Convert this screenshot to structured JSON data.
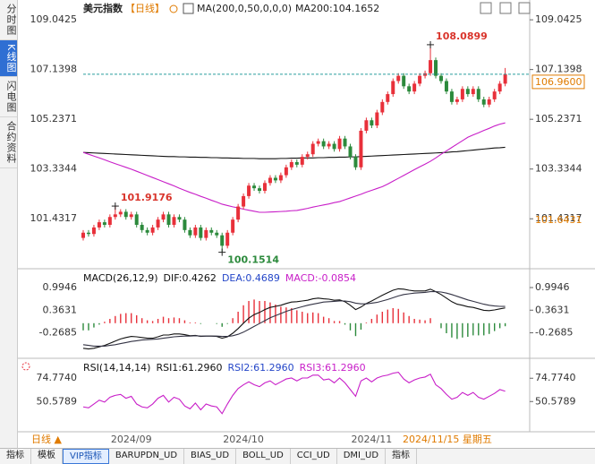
{
  "ui": {
    "side_tabs": [
      "分时图",
      "K线图",
      "闪电图",
      "合约资料"
    ],
    "instrument": "美元指数",
    "period": "【日线】",
    "indicator": "MA(200,0,50,0,0,0)",
    "ma_value": "MA200:104.1652",
    "period_button": "日线 ▲",
    "cursor_date": "2024/11/15 星期五",
    "bottom_tabs": [
      "指标",
      "模板",
      "VIP指标",
      "BARUPDN_UD",
      "BIAS_UD",
      "BOLL_UD",
      "CCI_UD",
      "DMI_UD",
      "指标"
    ]
  },
  "chart_data": [
    {
      "type": "candlestick",
      "up_color": "#e8303a",
      "down_color": "#2c8a3c",
      "categories": [
        null,
        null,
        null,
        null,
        null,
        null,
        null,
        null,
        null,
        "2024/09",
        null,
        null,
        null,
        null,
        null,
        null,
        null,
        null,
        null,
        null,
        null,
        null,
        null,
        null,
        null,
        null,
        null,
        null,
        null,
        null,
        "2024/10",
        null,
        null,
        null,
        null,
        null,
        null,
        null,
        null,
        null,
        null,
        null,
        null,
        null,
        null,
        null,
        null,
        null,
        null,
        null,
        null,
        null,
        null,
        null,
        "2024/11",
        null,
        null,
        null,
        null,
        null,
        null,
        null,
        null,
        null,
        null,
        null,
        null,
        null,
        null,
        null,
        null,
        null,
        null,
        null,
        null,
        null,
        null,
        null,
        null,
        null
      ],
      "open": [
        100.7,
        100.9,
        100.85,
        101.1,
        101.3,
        101.2,
        101.5,
        101.6,
        101.7,
        101.5,
        101.6,
        101.2,
        101.0,
        100.9,
        101.1,
        101.4,
        101.6,
        101.2,
        101.5,
        101.4,
        101.0,
        100.8,
        101.1,
        100.7,
        101.0,
        100.9,
        100.8,
        100.4,
        100.9,
        101.4,
        101.9,
        102.3,
        102.7,
        102.6,
        102.5,
        102.8,
        103.0,
        102.9,
        103.1,
        103.4,
        103.6,
        103.5,
        103.8,
        103.9,
        104.3,
        104.4,
        104.2,
        104.3,
        104.1,
        104.5,
        104.2,
        103.8,
        103.4,
        104.8,
        105.2,
        105.0,
        105.5,
        105.9,
        106.2,
        106.7,
        106.9,
        106.5,
        106.3,
        106.6,
        106.9,
        107.0,
        107.5,
        106.9,
        106.7,
        106.3,
        105.9,
        106.0,
        106.4,
        106.2,
        106.4,
        106.0,
        105.8,
        106.0,
        106.3,
        106.6
      ],
      "high": [
        101.0,
        101.0,
        101.2,
        101.4,
        101.4,
        101.6,
        101.9176,
        101.8,
        101.8,
        101.7,
        101.7,
        101.3,
        101.1,
        101.2,
        101.5,
        101.7,
        101.7,
        101.6,
        101.6,
        101.5,
        101.1,
        101.2,
        101.2,
        101.1,
        101.1,
        101.0,
        100.9,
        101.0,
        101.5,
        102.0,
        102.4,
        102.8,
        102.8,
        102.7,
        102.9,
        103.1,
        103.1,
        103.2,
        103.5,
        103.7,
        103.7,
        103.9,
        104.0,
        104.4,
        104.5,
        104.5,
        104.4,
        104.4,
        104.6,
        104.6,
        104.3,
        103.9,
        104.9,
        105.3,
        105.3,
        105.6,
        106.0,
        106.3,
        106.8,
        107.0,
        107.0,
        106.6,
        106.7,
        107.0,
        107.1,
        108.0899,
        107.6,
        107.0,
        106.8,
        106.4,
        106.1,
        106.5,
        106.5,
        106.5,
        106.5,
        106.1,
        106.1,
        106.4,
        106.7,
        107.2
      ],
      "low": [
        100.6,
        100.75,
        100.75,
        101.0,
        101.1,
        101.1,
        101.4,
        101.5,
        101.4,
        101.4,
        101.1,
        100.9,
        100.8,
        100.8,
        101.0,
        101.3,
        101.1,
        101.1,
        101.3,
        100.9,
        100.7,
        100.7,
        100.6,
        100.6,
        100.8,
        100.7,
        100.1514,
        100.3,
        100.8,
        101.3,
        101.8,
        102.2,
        102.5,
        102.4,
        102.4,
        102.7,
        102.8,
        102.8,
        103.0,
        103.3,
        103.4,
        103.4,
        103.7,
        103.8,
        104.2,
        104.1,
        104.1,
        104.0,
        104.0,
        104.1,
        103.7,
        103.3,
        103.3,
        104.7,
        104.9,
        104.9,
        105.4,
        105.8,
        106.1,
        106.6,
        106.4,
        106.2,
        106.2,
        106.5,
        106.8,
        106.9,
        106.8,
        106.6,
        106.2,
        105.8,
        105.8,
        105.9,
        106.1,
        106.1,
        105.9,
        105.7,
        105.7,
        105.9,
        106.2,
        106.5
      ],
      "close": [
        100.9,
        100.85,
        101.1,
        101.3,
        101.2,
        101.5,
        101.6,
        101.7,
        101.5,
        101.6,
        101.2,
        101.0,
        100.9,
        101.1,
        101.4,
        101.6,
        101.2,
        101.5,
        101.4,
        101.0,
        100.8,
        101.1,
        100.7,
        101.0,
        100.9,
        100.8,
        100.4,
        100.9,
        101.4,
        101.9,
        102.3,
        102.7,
        102.6,
        102.5,
        102.8,
        103.0,
        102.9,
        103.1,
        103.4,
        103.6,
        103.5,
        103.8,
        103.9,
        104.3,
        104.4,
        104.2,
        104.3,
        104.1,
        104.5,
        104.2,
        103.8,
        103.4,
        104.8,
        105.2,
        105.0,
        105.5,
        105.9,
        106.2,
        106.7,
        106.9,
        106.5,
        106.3,
        106.6,
        106.9,
        107.0,
        107.5,
        106.9,
        106.7,
        106.3,
        105.9,
        106.0,
        106.4,
        106.2,
        106.4,
        106.0,
        105.8,
        106.0,
        106.3,
        106.6,
        106.96
      ],
      "series": [
        {
          "color": "#111111",
          "values": [
            103.97,
            103.96,
            103.95,
            103.94,
            103.93,
            103.92,
            103.91,
            103.9,
            103.89,
            103.88,
            103.87,
            103.86,
            103.85,
            103.84,
            103.83,
            103.82,
            103.81,
            103.81,
            103.8,
            103.8,
            103.79,
            103.79,
            103.78,
            103.78,
            103.77,
            103.77,
            103.76,
            103.76,
            103.75,
            103.75,
            103.74,
            103.74,
            103.74,
            103.73,
            103.73,
            103.73,
            103.73,
            103.74,
            103.74,
            103.75,
            103.75,
            103.76,
            103.76,
            103.76,
            103.77,
            103.77,
            103.78,
            103.78,
            103.79,
            103.79,
            103.8,
            103.8,
            103.81,
            103.82,
            103.83,
            103.84,
            103.85,
            103.86,
            103.87,
            103.88,
            103.89,
            103.9,
            103.91,
            103.92,
            103.93,
            103.94,
            103.95,
            103.96,
            103.97,
            103.99,
            104.0,
            104.02,
            104.04,
            104.06,
            104.08,
            104.1,
            104.12,
            104.14,
            104.15,
            104.1652
          ]
        },
        {
          "color": "#c81ec8",
          "values": [
            103.97,
            103.9,
            103.83,
            103.76,
            103.69,
            103.61,
            103.54,
            103.47,
            103.4,
            103.33,
            103.25,
            103.17,
            103.09,
            103.01,
            102.93,
            102.85,
            102.77,
            102.69,
            102.6,
            102.52,
            102.44,
            102.37,
            102.29,
            102.22,
            102.14,
            102.07,
            101.99,
            101.94,
            101.89,
            101.85,
            101.8,
            101.76,
            101.72,
            101.68,
            101.68,
            101.69,
            101.7,
            101.71,
            101.72,
            101.74,
            101.75,
            101.79,
            101.83,
            101.88,
            101.92,
            101.96,
            102.0,
            102.05,
            102.09,
            102.16,
            102.23,
            102.3,
            102.37,
            102.45,
            102.52,
            102.59,
            102.66,
            102.76,
            102.87,
            102.98,
            103.09,
            103.2,
            103.31,
            103.42,
            103.52,
            103.63,
            103.76,
            103.9,
            104.03,
            104.16,
            104.29,
            104.42,
            104.55,
            104.64,
            104.72,
            104.81,
            104.89,
            104.98,
            105.05,
            105.1
          ]
        }
      ],
      "last_value_label": "106.9600",
      "last_line_color": "#2a9d9d",
      "reference_level": 101.6431,
      "ylim": [
        99.59,
        109.8
      ],
      "yticks": [
        101.4317,
        103.3344,
        105.2371,
        107.1398,
        109.0425
      ]
    },
    {
      "type": "macd",
      "legend": [
        {
          "text": "MACD(26,12,9)",
          "color": "#111111"
        },
        {
          "text": "DIF:0.4262",
          "color": "#111111"
        },
        {
          "text": "DEA:0.4689",
          "color": "#2446c8"
        },
        {
          "text": "MACD:-0.0854",
          "color": "#c81ec8"
        }
      ],
      "up_color": "#e8303a",
      "down_color": "#2c8a3c",
      "series": [
        {
          "color": "#111111",
          "values": [
            -0.7,
            -0.72,
            -0.7,
            -0.66,
            -0.62,
            -0.56,
            -0.5,
            -0.44,
            -0.4,
            -0.37,
            -0.38,
            -0.4,
            -0.42,
            -0.42,
            -0.38,
            -0.33,
            -0.33,
            -0.3,
            -0.3,
            -0.32,
            -0.35,
            -0.34,
            -0.37,
            -0.36,
            -0.36,
            -0.37,
            -0.42,
            -0.38,
            -0.28,
            -0.15,
            0.0,
            0.14,
            0.24,
            0.3,
            0.38,
            0.44,
            0.47,
            0.5,
            0.55,
            0.59,
            0.6,
            0.62,
            0.64,
            0.68,
            0.7,
            0.68,
            0.67,
            0.64,
            0.65,
            0.6,
            0.5,
            0.38,
            0.45,
            0.55,
            0.62,
            0.7,
            0.78,
            0.85,
            0.92,
            0.96,
            0.95,
            0.92,
            0.9,
            0.9,
            0.9,
            0.95,
            0.88,
            0.8,
            0.7,
            0.6,
            0.53,
            0.5,
            0.46,
            0.44,
            0.4,
            0.36,
            0.35,
            0.37,
            0.4,
            0.4262
          ]
        },
        {
          "color": "#333344",
          "values": [
            -0.6,
            -0.62,
            -0.64,
            -0.64,
            -0.64,
            -0.62,
            -0.6,
            -0.57,
            -0.54,
            -0.51,
            -0.49,
            -0.47,
            -0.46,
            -0.45,
            -0.44,
            -0.42,
            -0.4,
            -0.38,
            -0.37,
            -0.36,
            -0.36,
            -0.35,
            -0.36,
            -0.36,
            -0.36,
            -0.36,
            -0.37,
            -0.37,
            -0.35,
            -0.31,
            -0.25,
            -0.17,
            -0.09,
            -0.01,
            0.07,
            0.15,
            0.21,
            0.27,
            0.33,
            0.38,
            0.42,
            0.46,
            0.5,
            0.53,
            0.56,
            0.59,
            0.6,
            0.61,
            0.62,
            0.62,
            0.6,
            0.56,
            0.54,
            0.54,
            0.56,
            0.58,
            0.62,
            0.66,
            0.71,
            0.76,
            0.8,
            0.82,
            0.84,
            0.85,
            0.86,
            0.88,
            0.88,
            0.87,
            0.84,
            0.8,
            0.75,
            0.7,
            0.65,
            0.61,
            0.57,
            0.53,
            0.5,
            0.48,
            0.47,
            0.4689
          ]
        }
      ],
      "histogram": [
        -0.2,
        -0.2,
        -0.12,
        -0.04,
        0.04,
        0.12,
        0.2,
        0.26,
        0.28,
        0.28,
        0.22,
        0.14,
        0.08,
        0.06,
        0.12,
        0.18,
        0.14,
        0.16,
        0.14,
        0.08,
        0.02,
        0.02,
        -0.02,
        0,
        0,
        -0.02,
        -0.1,
        -0.02,
        0.14,
        0.32,
        0.5,
        0.62,
        0.66,
        0.62,
        0.62,
        0.58,
        0.52,
        0.46,
        0.44,
        0.42,
        0.36,
        0.32,
        0.28,
        0.3,
        0.28,
        0.18,
        0.14,
        0.06,
        0.06,
        -0.04,
        -0.2,
        -0.36,
        -0.18,
        0.02,
        0.12,
        0.24,
        0.32,
        0.38,
        0.42,
        0.4,
        0.3,
        0.2,
        0.12,
        0.1,
        0.08,
        0.14,
        0,
        -0.14,
        -0.28,
        -0.4,
        -0.44,
        -0.4,
        -0.38,
        -0.34,
        -0.34,
        -0.34,
        -0.3,
        -0.22,
        -0.14,
        -0.0854
      ],
      "ylim": [
        -0.93,
        1.47
      ],
      "yticks": [
        -0.2685,
        0.3631,
        0.9946
      ]
    },
    {
      "type": "line",
      "legend": [
        {
          "text": "RSI(14,14,14)",
          "color": "#111111"
        },
        {
          "text": "RSI1:61.2960",
          "color": "#111111"
        },
        {
          "text": "RSI2:61.2960",
          "color": "#2446c8"
        },
        {
          "text": "RSI3:61.2960",
          "color": "#c81ec8"
        }
      ],
      "series": [
        {
          "color": "#c81ec8",
          "values": [
            45,
            44,
            48,
            52,
            50,
            55,
            57,
            58,
            54,
            56,
            48,
            45,
            44,
            48,
            54,
            57,
            50,
            55,
            53,
            46,
            43,
            49,
            42,
            48,
            46,
            45,
            38,
            48,
            57,
            64,
            68,
            71,
            68,
            66,
            70,
            72,
            68,
            71,
            74,
            75,
            72,
            75,
            75,
            78,
            78,
            73,
            74,
            70,
            75,
            70,
            63,
            56,
            72,
            75,
            71,
            75,
            77,
            78,
            80,
            81,
            74,
            70,
            73,
            75,
            76,
            79,
            68,
            64,
            58,
            53,
            55,
            60,
            57,
            60,
            55,
            53,
            56,
            59,
            63,
            61.296
          ]
        }
      ],
      "ylim": [
        19.2,
        93.6
      ],
      "yticks": [
        {
          "value": 50.5789,
          "label": "50.5789"
        },
        {
          "value": 74.774,
          "label": "74.7740"
        }
      ]
    }
  ]
}
